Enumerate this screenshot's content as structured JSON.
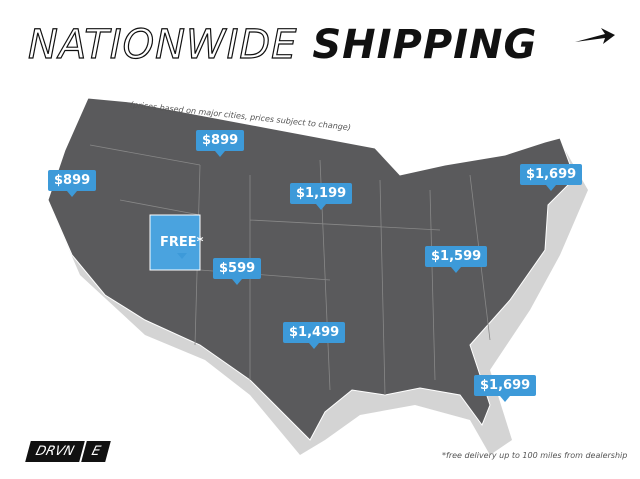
{
  "title": {
    "part1": "NATIONWIDE",
    "part2": "SHIPPING",
    "arrow_icon": "arrow-right-icon"
  },
  "subtitle": "(prices based on major cities, prices subject to change)",
  "colors": {
    "map": "#5a5a5c",
    "shadow": "#d4d4d4",
    "pin": "#3d9ad9",
    "free_state": "#4aa3df"
  },
  "pins": [
    {
      "label": "$899",
      "region": "Pacific Northwest"
    },
    {
      "label": "$899",
      "region": "Montana"
    },
    {
      "label": "FREE*",
      "region": "Utah"
    },
    {
      "label": "$599",
      "region": "Colorado"
    },
    {
      "label": "$1,199",
      "region": "Nebraska"
    },
    {
      "label": "$1,499",
      "region": "Oklahoma"
    },
    {
      "label": "$1,599",
      "region": "Ohio Valley"
    },
    {
      "label": "$1,699",
      "region": "Northeast"
    },
    {
      "label": "$1,699",
      "region": "Florida"
    }
  ],
  "logo": {
    "text": "DRVN",
    "mark": "E"
  },
  "footnote": "*free delivery up to 100 miles from dealership"
}
